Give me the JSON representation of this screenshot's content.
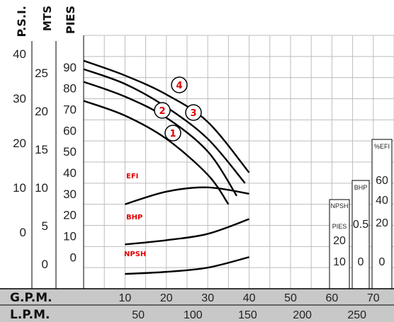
{
  "colors": {
    "grid": "#bdbdbd",
    "curve": "#000000",
    "label": "#e00000",
    "footer_bg": "#c8c8c8"
  },
  "left_axes": {
    "psi": {
      "title": "P.S.I.",
      "ticks": [
        "40",
        "30",
        "20",
        "10",
        "0"
      ]
    },
    "mts": {
      "title": "MTS",
      "ticks": [
        "25",
        "20",
        "15",
        "10",
        "5",
        "0"
      ]
    },
    "pies": {
      "title": "PIES",
      "ticks": [
        "90",
        "80",
        "70",
        "60",
        "50",
        "40",
        "30",
        "20",
        "10",
        "0"
      ]
    }
  },
  "bottom_axes": {
    "gpm": {
      "title": "G.P.M.",
      "ticks": [
        "10",
        "20",
        "30",
        "40",
        "50",
        "60",
        "70"
      ]
    },
    "lpm": {
      "title": "L.P.M.",
      "ticks": [
        "50",
        "100",
        "150",
        "200",
        "250"
      ]
    }
  },
  "side_scales": {
    "npsh": {
      "title": "NPSH",
      "unit": "PIES",
      "ticks": [
        "20",
        "10"
      ]
    },
    "bhp": {
      "title": "BHP",
      "ticks": [
        "0.5",
        "0"
      ]
    },
    "efi": {
      "title": "%EFI",
      "ticks": [
        "60",
        "40",
        "20",
        "0"
      ]
    }
  },
  "chart_data": {
    "type": "line",
    "xlabel": "G.P.M.",
    "ylabel": "PIES",
    "xlim": [
      0,
      75
    ],
    "ylim": [
      -15,
      105
    ],
    "series": [
      {
        "name": "4",
        "points": [
          [
            0,
            93
          ],
          [
            10,
            86
          ],
          [
            20,
            77
          ],
          [
            30,
            64
          ],
          [
            40,
            40
          ]
        ]
      },
      {
        "name": "3",
        "points": [
          [
            0,
            89
          ],
          [
            10,
            82
          ],
          [
            20,
            71
          ],
          [
            30,
            56
          ],
          [
            39,
            35
          ]
        ]
      },
      {
        "name": "2",
        "points": [
          [
            0,
            83
          ],
          [
            10,
            76
          ],
          [
            20,
            66
          ],
          [
            30,
            50
          ],
          [
            37,
            29
          ]
        ]
      },
      {
        "name": "1",
        "points": [
          [
            0,
            74
          ],
          [
            10,
            67
          ],
          [
            20,
            56
          ],
          [
            30,
            39
          ],
          [
            35,
            25
          ]
        ]
      },
      {
        "name": "EFI",
        "points": [
          [
            10,
            25
          ],
          [
            20,
            31
          ],
          [
            30,
            33
          ],
          [
            40,
            30
          ]
        ]
      },
      {
        "name": "BHP",
        "points": [
          [
            10,
            6
          ],
          [
            20,
            8
          ],
          [
            30,
            11
          ],
          [
            40,
            18
          ]
        ]
      },
      {
        "name": "NPSH",
        "points": [
          [
            10,
            -8
          ],
          [
            20,
            -7
          ],
          [
            30,
            -5
          ],
          [
            40,
            0
          ]
        ]
      }
    ],
    "curve_labels": [
      "1",
      "2",
      "3",
      "4"
    ],
    "line_labels": [
      "EFI",
      "BHP",
      "NPSH"
    ]
  }
}
